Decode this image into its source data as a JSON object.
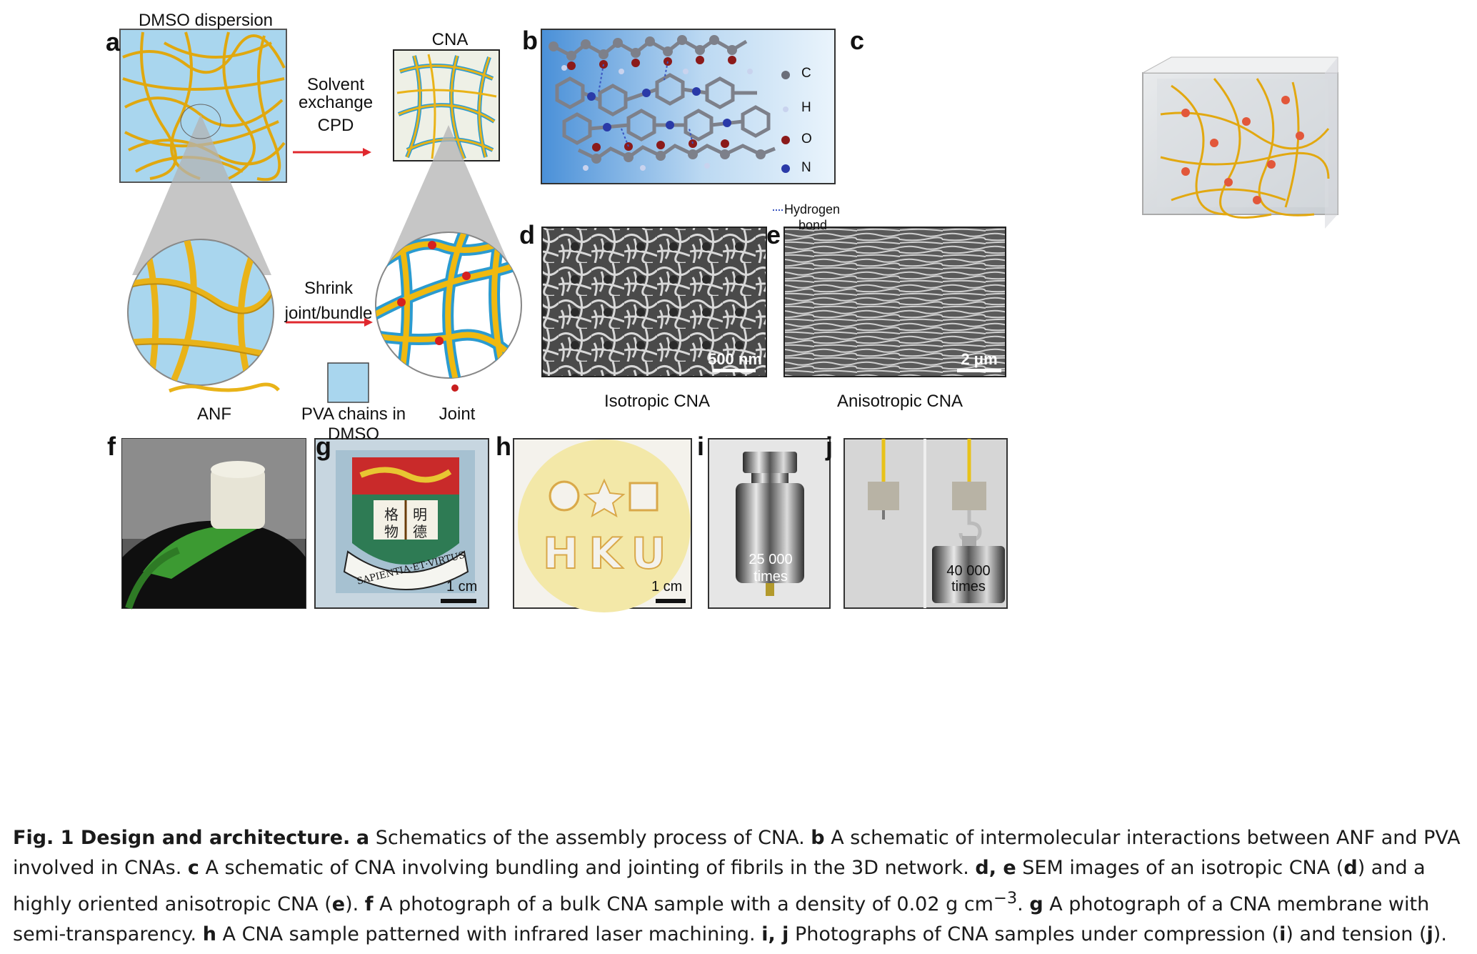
{
  "panel_labels": {
    "a": "a",
    "b": "b",
    "c": "c",
    "d": "d",
    "e": "e",
    "f": "f",
    "g": "g",
    "h": "h",
    "i": "i",
    "j": "j"
  },
  "panel_a": {
    "dmso_dispersion": "DMSO dispersion",
    "cna": "CNA",
    "solvent": "Solvent",
    "exchange": "exchange",
    "cpd": "CPD",
    "shrink": "Shrink",
    "joint_bundle": "joint/bundle",
    "legend_anf": "ANF",
    "legend_pva": "PVA chains in DMSO",
    "legend_joint": "Joint"
  },
  "panel_b": {
    "legend": [
      {
        "symbol": "C",
        "color": "#6b6f7a"
      },
      {
        "symbol": "H",
        "color": "#c9d3ee"
      },
      {
        "symbol": "O",
        "color": "#8b1a1a"
      },
      {
        "symbol": "N",
        "color": "#2a3aa8"
      }
    ],
    "hydrogen": "Hydrogen",
    "bond": "bond"
  },
  "panel_d": {
    "scale": "500 nm",
    "caption": "Isotropic CNA"
  },
  "panel_e": {
    "scale": "2 μm",
    "caption": "Anisotropic CNA"
  },
  "panel_g": {
    "scale": "1 cm",
    "motto": "SAPIENTIA·ET·VIRTUS",
    "char1": "格",
    "char2": "明",
    "char3": "物",
    "char4": "德"
  },
  "panel_h": {
    "scale": "1 cm",
    "letters": "HKU"
  },
  "panel_i": {
    "count": "25 000",
    "unit": "times"
  },
  "panel_j": {
    "count": "40 000",
    "unit": "times"
  },
  "caption": {
    "fig": "Fig. 1 Design and architecture.",
    "a_l": "a",
    "a_t": " Schematics of the assembly process of CNA. ",
    "b_l": "b",
    "b_t": " A schematic of intermolecular interactions between ANF and PVA involved in CNAs. ",
    "c_l": "c",
    "c_t": " A schematic of CNA involving bundling and jointing of fibrils in the 3D network. ",
    "de_l": "d, e",
    "de_t1": " SEM images of an isotropic CNA (",
    "d_l": "d",
    "de_t2": ") and a highly oriented anisotropic CNA (",
    "e_l": "e",
    "de_t3": "). ",
    "f_l": "f",
    "f_t": " A photograph of a bulk CNA sample with a density of 0.02 g cm",
    "f_sup": "−3",
    "f_end": ". ",
    "g_l": "g",
    "g_t": " A photograph of a CNA membrane with semi-transparency. ",
    "h_l": "h",
    "h_t": " A CNA sample patterned with infrared laser machining. ",
    "ij_l": "i, j",
    "ij_t1": " Photographs of CNA samples under compression (",
    "i_l": "i",
    "ij_t2": ") and tension (",
    "j_l": "j",
    "ij_t3": ")."
  }
}
